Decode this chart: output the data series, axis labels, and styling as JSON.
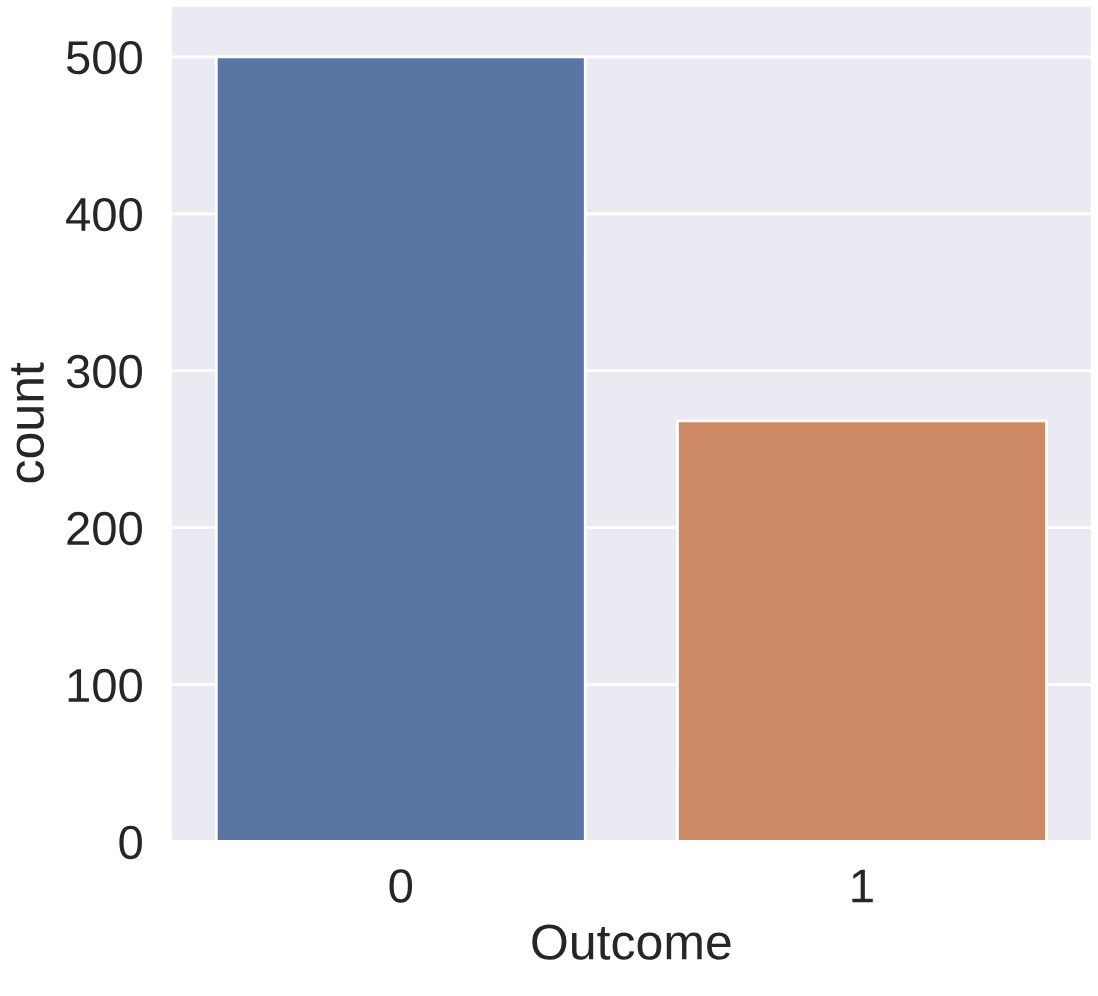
{
  "chart_data": {
    "type": "bar",
    "xlabel": "Outcome",
    "ylabel": "count",
    "categories": [
      "0",
      "1"
    ],
    "values": [
      500,
      268
    ],
    "colors": [
      "#5975a4",
      "#cc8963"
    ],
    "ylim": [
      0,
      533
    ],
    "yticks": [
      0,
      100,
      200,
      300,
      400,
      500
    ],
    "grid": "y"
  }
}
